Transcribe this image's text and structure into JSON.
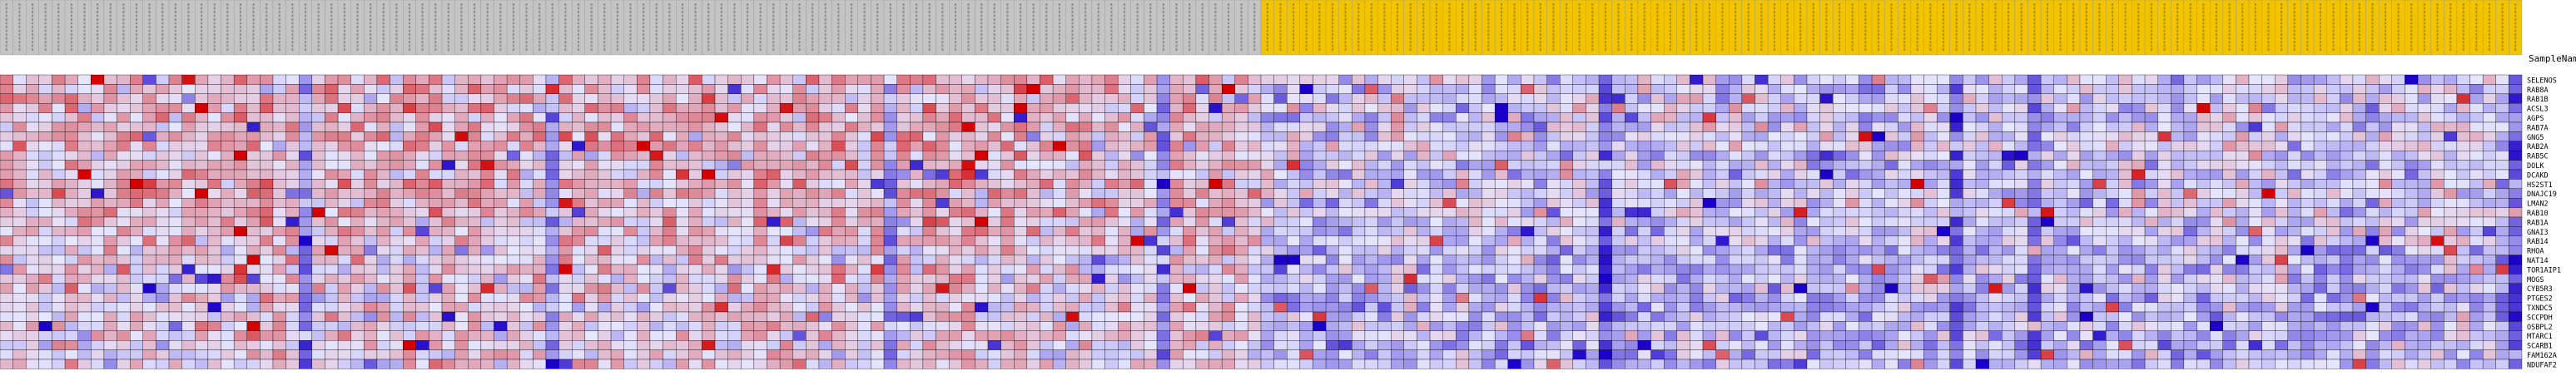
{
  "title_label": "SampleName",
  "colors": {
    "group_a_header": "#c4c4c4",
    "group_b_header": "#f2c400",
    "cell_border": "#000000",
    "low": "#1a00c8",
    "mid": "#e6e6ff",
    "high": "#d40000"
  },
  "chart_data": {
    "type": "heatmap",
    "title": "",
    "rows": [
      "SELENOS",
      "RAB8A",
      "RAB1B",
      "ACSL3",
      "AGPS",
      "RAB7A",
      "GNG5",
      "RAB2A",
      "RAB5C",
      "DOLK",
      "DCAKD",
      "HS2ST1",
      "DNAJC19",
      "LMAN2",
      "RAB10",
      "RAB1A",
      "GNAI3",
      "RAB14",
      "RHOA",
      "NAT14",
      "TOR1AIP1",
      "MOGS",
      "CYB5R3",
      "PTGES2",
      "TXNDC5",
      "SCCPDH",
      "OSBPL2",
      "MTARC1",
      "SCARB1",
      "FAM162A",
      "NDUFAF2"
    ],
    "groups": [
      {
        "name": "group_a",
        "columns": 97
      },
      {
        "name": "group_b",
        "columns": 97
      }
    ],
    "value_range": [
      -3,
      3
    ],
    "values_note_seed": 1337
  }
}
